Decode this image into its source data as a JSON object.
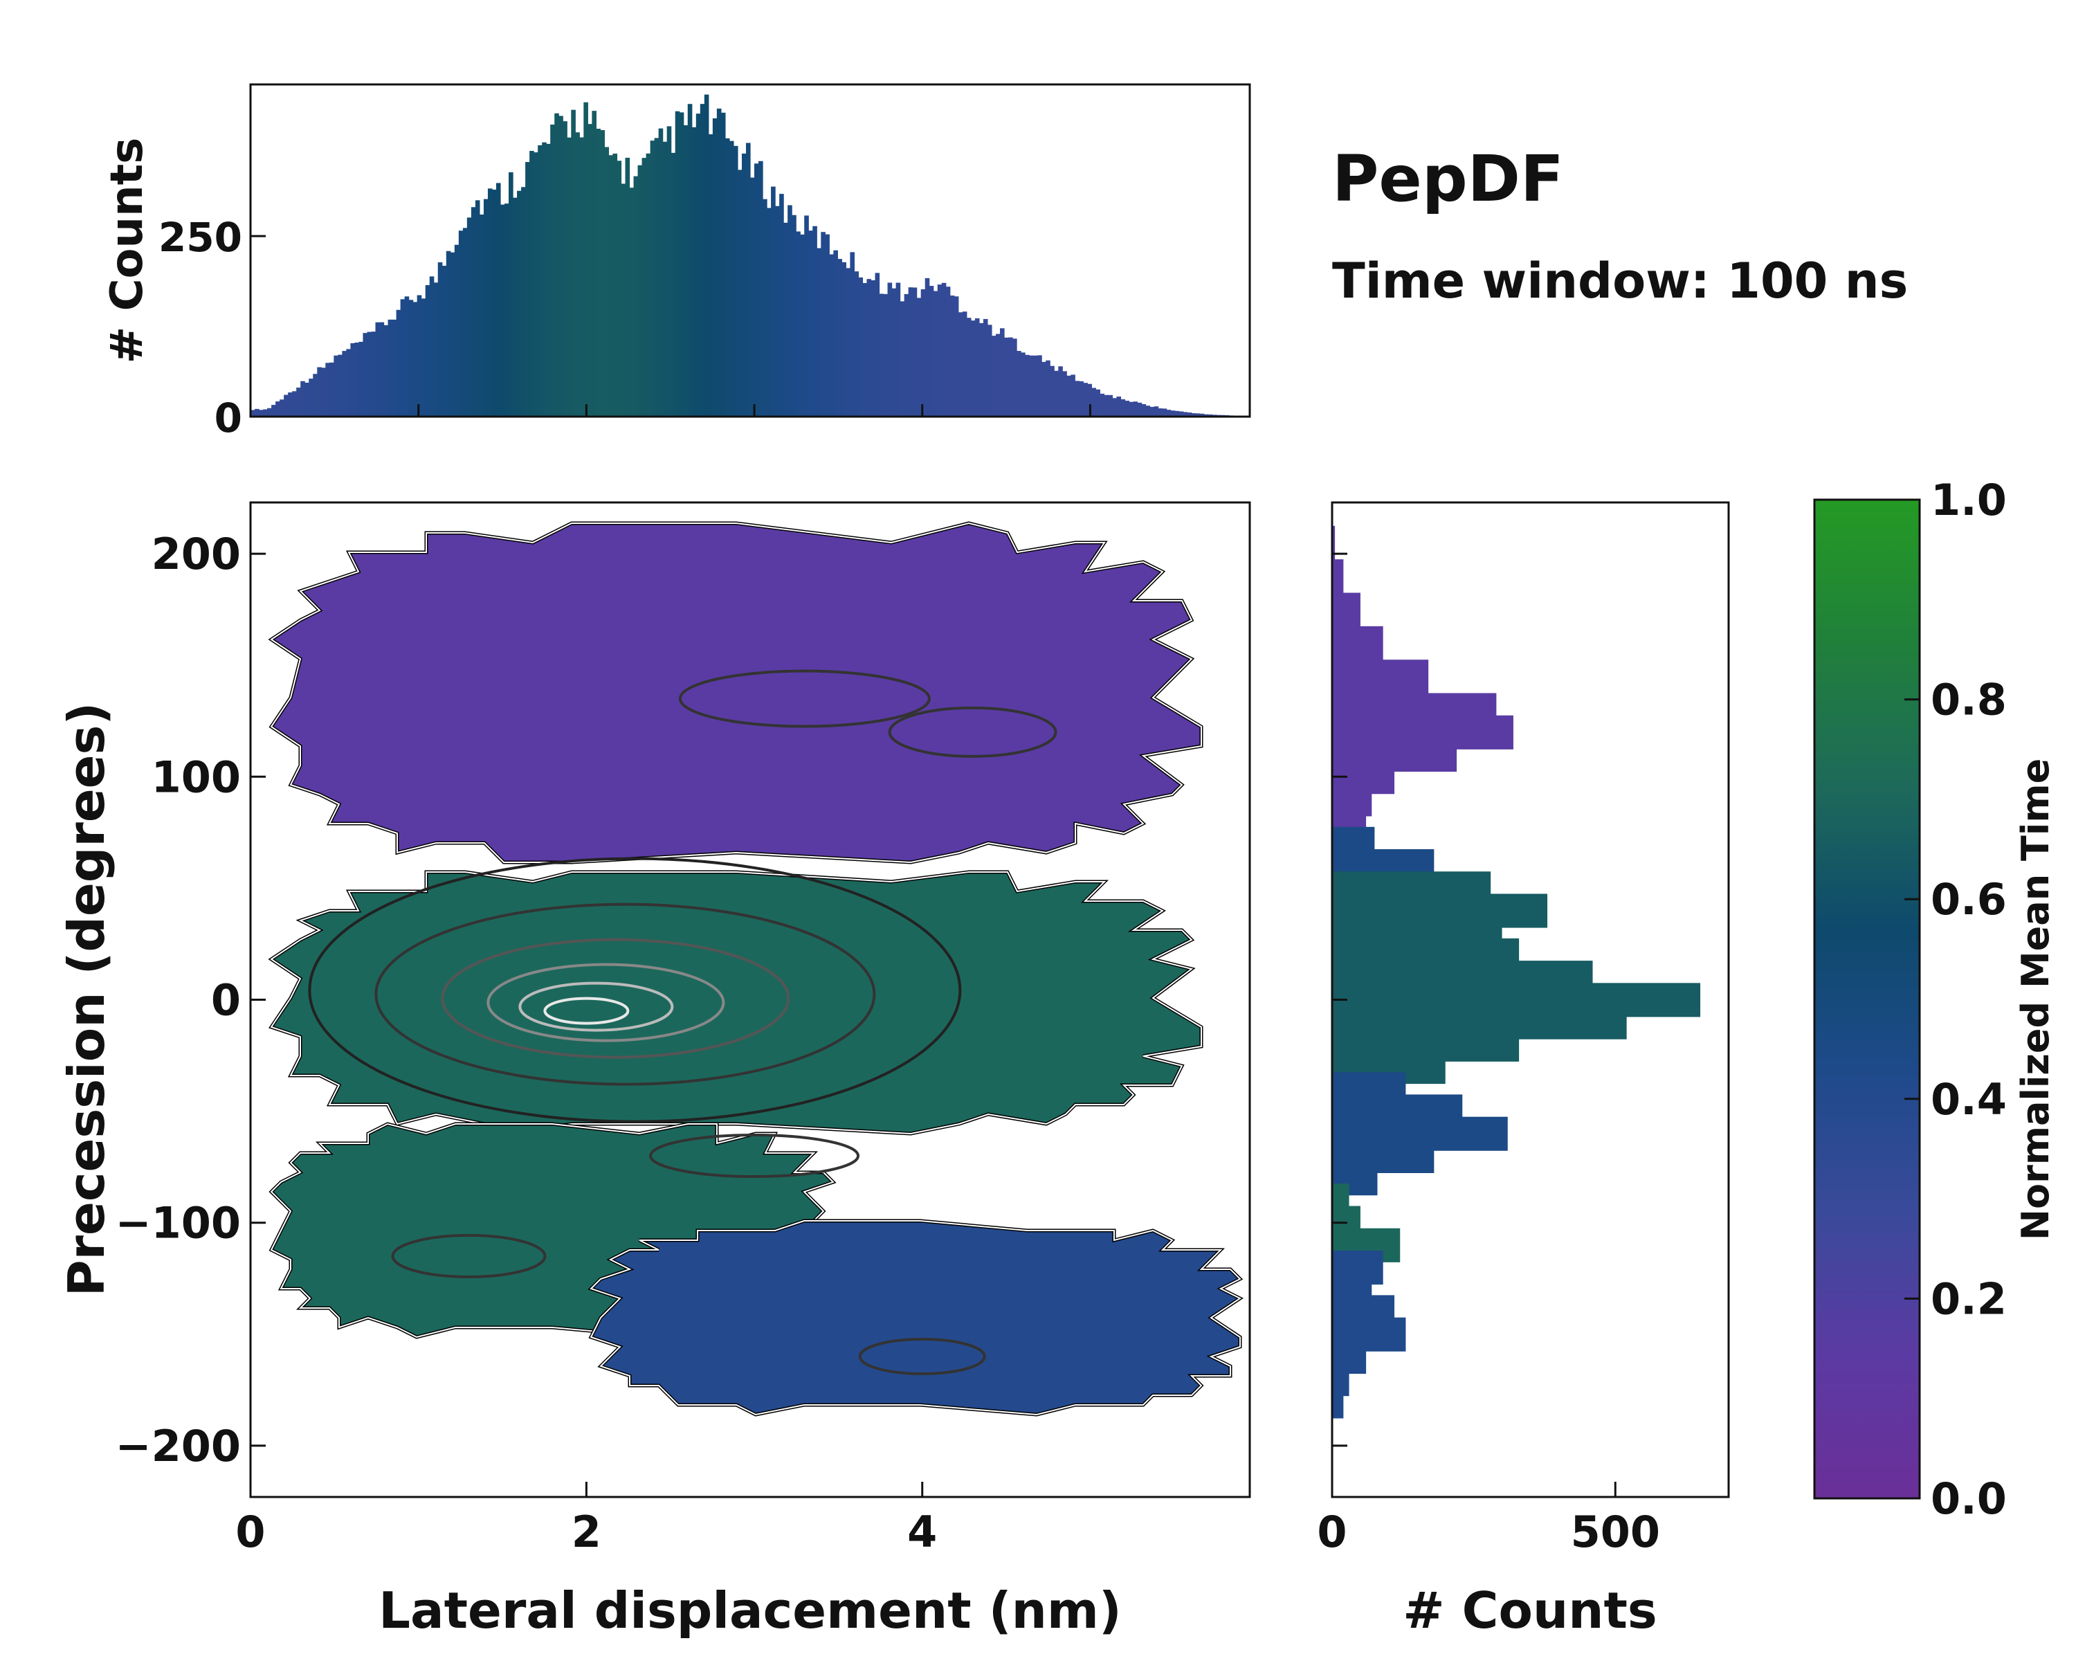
{
  "title": "PepDF",
  "subtitle": "Time window: 100 ns",
  "chart_data": [
    {
      "type": "bar",
      "name": "top-marginal-histogram",
      "xlabel": "",
      "ylabel": "# Counts",
      "xlim": [
        0,
        5.95
      ],
      "ylim": [
        0,
        460
      ],
      "yticks": [
        0,
        250
      ],
      "bin_centers_nm": [
        0.1,
        0.3,
        0.5,
        0.7,
        0.9,
        1.1,
        1.3,
        1.5,
        1.7,
        1.9,
        2.0,
        2.1,
        2.3,
        2.5,
        2.7,
        2.9,
        3.1,
        3.3,
        3.5,
        3.7,
        3.9,
        4.1,
        4.3,
        4.5,
        4.7,
        4.9,
        5.1,
        5.3,
        5.5,
        5.7,
        5.9
      ],
      "counts": [
        10,
        45,
        80,
        110,
        150,
        190,
        290,
        310,
        360,
        410,
        420,
        370,
        330,
        390,
        420,
        370,
        310,
        260,
        230,
        190,
        170,
        185,
        140,
        110,
        80,
        55,
        30,
        18,
        8,
        3,
        1
      ],
      "color_by": "Normalized Mean Time"
    },
    {
      "type": "heatmap",
      "name": "main-2d-histogram",
      "xlabel": "Lateral displacement (nm)",
      "ylabel": "Precession (degrees)",
      "xlim": [
        0,
        5.95
      ],
      "ylim": [
        -223,
        223
      ],
      "xticks": [
        0,
        2,
        4
      ],
      "yticks": [
        200,
        100,
        0,
        -100,
        -200
      ],
      "regions": [
        {
          "label": "upper band",
          "x_range": [
            0.1,
            5.7
          ],
          "y_range": [
            60,
            215
          ],
          "mean_time": 0.15
        },
        {
          "label": "central band",
          "x_range": [
            0.1,
            5.7
          ],
          "y_range": [
            -60,
            60
          ],
          "mean_time": 0.7
        },
        {
          "label": "lower-left band",
          "x_range": [
            0.1,
            3.5
          ],
          "y_range": [
            -150,
            -55
          ],
          "mean_time": 0.7
        },
        {
          "label": "lower-right band",
          "x_range": [
            2.0,
            5.95
          ],
          "y_range": [
            -185,
            -100
          ],
          "mean_time": 0.4
        }
      ],
      "density_peak": {
        "x": 2.0,
        "y": -5
      },
      "contours": "density contours, peak near (2.0 nm, -5 deg)"
    },
    {
      "type": "bar",
      "orientation": "horizontal",
      "name": "right-marginal-histogram",
      "xlabel": "# Counts",
      "xlim": [
        0,
        700
      ],
      "xticks": [
        0,
        500
      ],
      "y_deg": [
        205,
        190,
        175,
        160,
        145,
        130,
        120,
        110,
        100,
        90,
        80,
        70,
        60,
        50,
        40,
        30,
        20,
        10,
        0,
        -10,
        -20,
        -30,
        -40,
        -50,
        -60,
        -70,
        -80,
        -90,
        -100,
        -110,
        -120,
        -130,
        -140,
        -150,
        -160,
        -170,
        -180
      ],
      "counts": [
        5,
        20,
        50,
        90,
        170,
        290,
        320,
        220,
        110,
        70,
        60,
        75,
        180,
        280,
        380,
        300,
        330,
        460,
        650,
        520,
        330,
        200,
        130,
        230,
        310,
        180,
        80,
        30,
        50,
        120,
        90,
        70,
        110,
        130,
        60,
        30,
        20
      ]
    },
    {
      "type": "heatmap",
      "name": "colorbar",
      "label": "Normalized Mean Time",
      "range": [
        0.0,
        1.0
      ],
      "ticks": [
        "0.0",
        "0.2",
        "0.4",
        "0.6",
        "0.8",
        "1.0"
      ],
      "colors": [
        "#6a2f98",
        "#5c3aa3",
        "#3a4a9a",
        "#1e4a8a",
        "#0e4a6c",
        "#1e6a5a",
        "#20803a",
        "#249a24"
      ]
    }
  ]
}
